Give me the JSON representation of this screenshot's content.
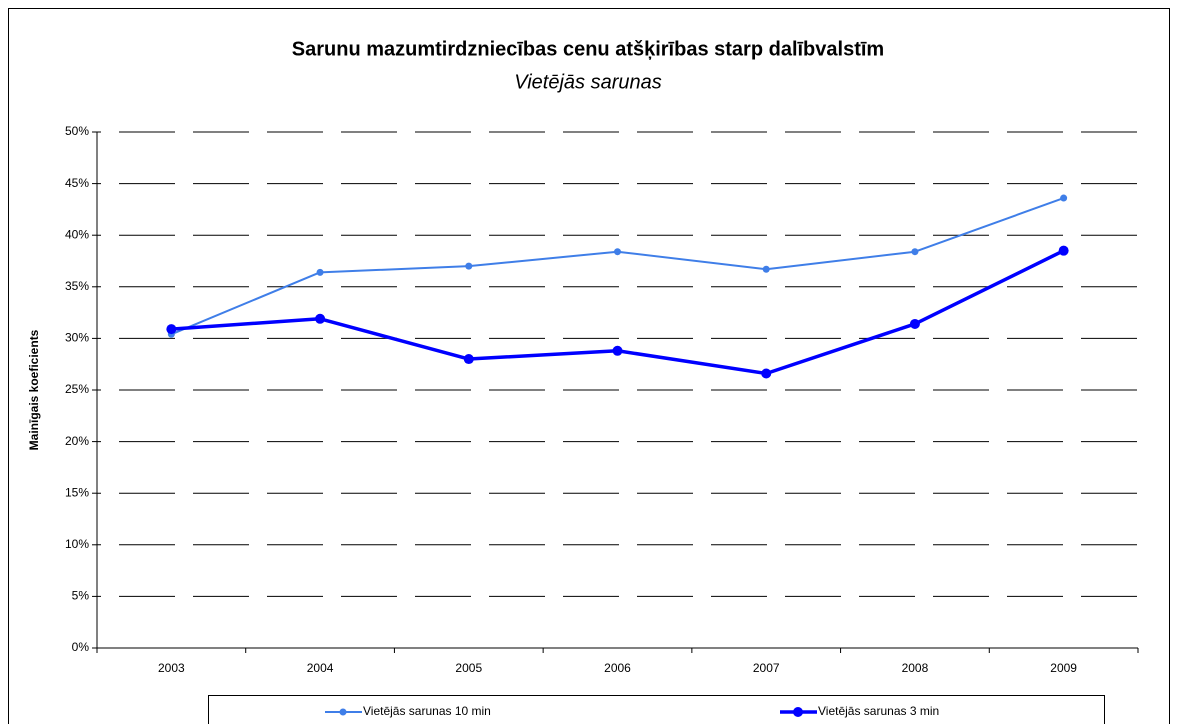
{
  "chart_data": {
    "type": "line",
    "title": "Sarunu mazumtirdzniecības cenu atšķirības starp dalībvalstīm",
    "subtitle": "Vietējās sarunas",
    "y_label": "Mainīgais koeficients",
    "categories": [
      "2003",
      "2004",
      "2005",
      "2006",
      "2007",
      "2008",
      "2009"
    ],
    "series": [
      {
        "name": "Vietējās sarunas 10 min",
        "color": "#3f7ee8",
        "values": [
          30.4,
          36.4,
          37.0,
          38.4,
          36.7,
          38.4,
          43.6
        ]
      },
      {
        "name": "Vietējās sarunas 3 min",
        "color": "#0000ff",
        "values": [
          30.9,
          31.9,
          28.0,
          28.8,
          26.6,
          31.4,
          38.5
        ]
      }
    ],
    "ylim": [
      0,
      50
    ],
    "yticks": [
      {
        "value": 0,
        "label": "0%"
      },
      {
        "value": 5,
        "label": "5%"
      },
      {
        "value": 10,
        "label": "10%"
      },
      {
        "value": 15,
        "label": "15%"
      },
      {
        "value": 20,
        "label": "20%"
      },
      {
        "value": 25,
        "label": "25%"
      },
      {
        "value": 30,
        "label": "30%"
      },
      {
        "value": 35,
        "label": "35%"
      },
      {
        "value": 40,
        "label": "40%"
      },
      {
        "value": 45,
        "label": "45%"
      },
      {
        "value": 50,
        "label": "50%"
      }
    ],
    "grid": true,
    "legend": "bottom"
  }
}
